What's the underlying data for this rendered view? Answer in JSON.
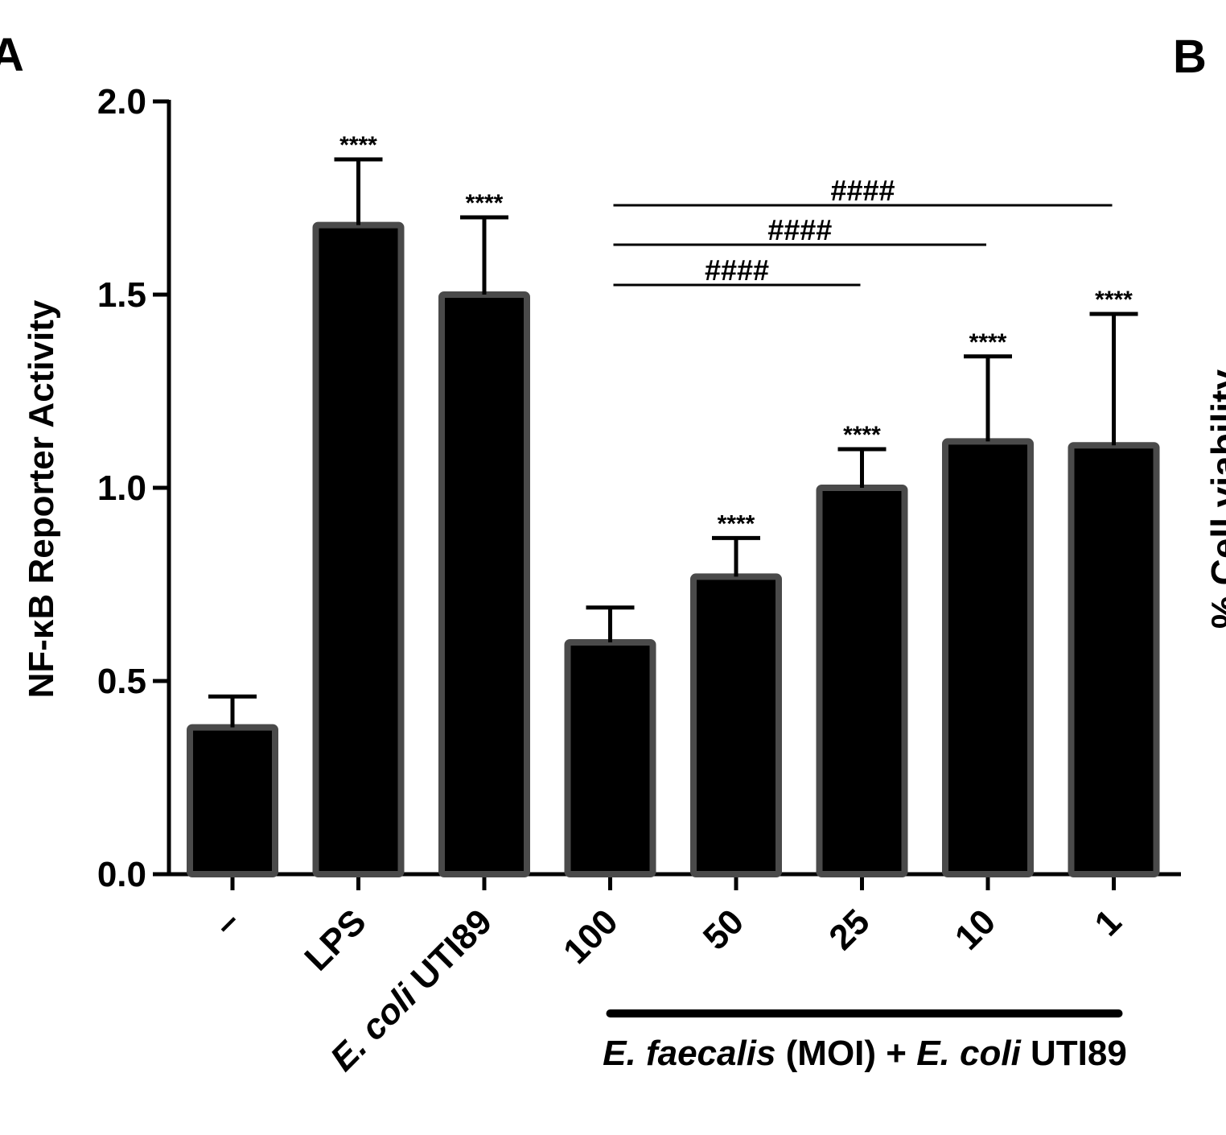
{
  "panel_labels": {
    "left": "A",
    "right": "B"
  },
  "right_panel_fragment": "% Cell viability",
  "chart_data": {
    "type": "bar",
    "title": "",
    "ylabel": "NF-κB Reporter Activity",
    "xlabel": "",
    "ylim": [
      0,
      2.0
    ],
    "yticks": [
      0.0,
      0.5,
      1.0,
      1.5,
      2.0
    ],
    "ytick_labels": [
      "0.0",
      "0.5",
      "1.0",
      "1.5",
      "2.0"
    ],
    "categories": [
      "–",
      "LPS",
      "E. coli UTI89",
      "100",
      "50",
      "25",
      "10",
      "1"
    ],
    "values": [
      0.38,
      1.68,
      1.5,
      0.6,
      0.77,
      1.0,
      1.12,
      1.11
    ],
    "errors": [
      0.08,
      0.17,
      0.2,
      0.09,
      0.1,
      0.1,
      0.22,
      0.34
    ],
    "significance": [
      "",
      "****",
      "****",
      "",
      "****",
      "****",
      "****",
      "****"
    ],
    "comparisons": [
      {
        "from": 3,
        "to": 5,
        "label": "####"
      },
      {
        "from": 3,
        "to": 6,
        "label": "####"
      },
      {
        "from": 3,
        "to": 7,
        "label": "####"
      }
    ],
    "group_label": {
      "from": 3,
      "to": 7,
      "parts": [
        {
          "text": "E. faecalis",
          "italic": true
        },
        {
          "text": " (MOI) + ",
          "italic": false
        },
        {
          "text": "E. coli",
          "italic": true
        },
        {
          "text": " UTI89",
          "italic": false
        }
      ]
    },
    "colors": {
      "bar_fill": "#000000",
      "bar_edge": "#4a4a4a",
      "axis": "#000000"
    },
    "grid": false,
    "legend": "none"
  }
}
